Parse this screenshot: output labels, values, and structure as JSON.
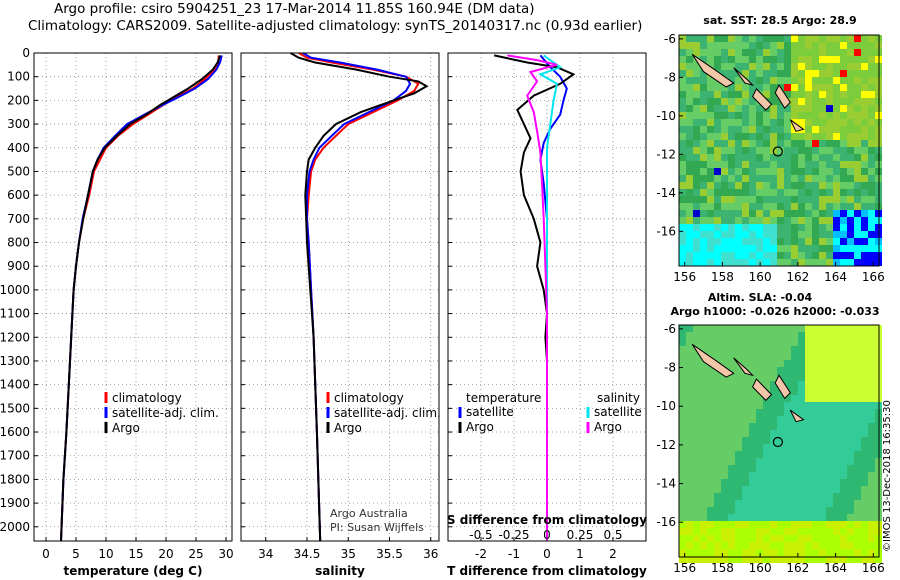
{
  "header": {
    "title_line1": "Argo profile: csiro 5904251_23 17-Mar-2014 11.85S 160.94E (DM data)",
    "title_line2": "Climatology: CARS2009. Satellite-adjusted climatology: synTS_20140317.nc (0.93d earlier)"
  },
  "watermark": "©IMOS 13-Dec-2018 16:35:30",
  "colors": {
    "climatology": "#ff0000",
    "satellite": "#0000ff",
    "argo": "#000000",
    "sat_salinity": "#00e5ee",
    "argo_salinity": "#ff00ff"
  },
  "depth_axis": {
    "ticks": [
      0,
      100,
      200,
      300,
      400,
      500,
      600,
      700,
      800,
      900,
      1000,
      1100,
      1200,
      1300,
      1400,
      1500,
      1600,
      1700,
      1800,
      1900,
      2000
    ]
  },
  "chart_data": [
    {
      "type": "line",
      "name": "temperature",
      "xlabel": "temperature (deg C)",
      "xlim": [
        -2,
        31
      ],
      "xticks": [
        0,
        5,
        10,
        15,
        20,
        25,
        30
      ],
      "ylim": [
        0,
        2060
      ],
      "legend": {
        "items": [
          "climatology",
          "satellite-adj. clim.",
          "Argo"
        ]
      },
      "series": [
        {
          "name": "climatology",
          "color": "#ff0000",
          "points": [
            [
              28.8,
              10
            ],
            [
              28.7,
              40
            ],
            [
              28.0,
              70
            ],
            [
              26.5,
              110
            ],
            [
              24.5,
              150
            ],
            [
              21.5,
              190
            ],
            [
              19.5,
              220
            ],
            [
              17.0,
              260
            ],
            [
              14.5,
              300
            ],
            [
              12.0,
              350
            ],
            [
              10.0,
              400
            ],
            [
              9.0,
              450
            ],
            [
              8.0,
              500
            ],
            [
              7.2,
              600
            ],
            [
              6.2,
              700
            ],
            [
              5.5,
              800
            ],
            [
              5.0,
              900
            ],
            [
              4.6,
              1000
            ],
            [
              4.2,
              1200
            ],
            [
              3.8,
              1400
            ],
            [
              3.4,
              1600
            ],
            [
              2.9,
              1800
            ],
            [
              2.5,
              2060
            ]
          ]
        },
        {
          "name": "satellite-adj. clim.",
          "color": "#0000ff",
          "points": [
            [
              29.3,
              10
            ],
            [
              29.0,
              40
            ],
            [
              28.4,
              70
            ],
            [
              27.0,
              110
            ],
            [
              24.8,
              150
            ],
            [
              21.8,
              190
            ],
            [
              19.4,
              220
            ],
            [
              16.4,
              260
            ],
            [
              13.5,
              300
            ],
            [
              11.5,
              350
            ],
            [
              9.6,
              400
            ],
            [
              8.6,
              450
            ],
            [
              7.8,
              500
            ],
            [
              7.0,
              600
            ],
            [
              6.1,
              700
            ],
            [
              5.5,
              800
            ],
            [
              5.0,
              900
            ],
            [
              4.6,
              1000
            ],
            [
              4.2,
              1200
            ],
            [
              3.8,
              1400
            ],
            [
              3.4,
              1600
            ],
            [
              2.9,
              1800
            ],
            [
              2.5,
              2060
            ]
          ]
        },
        {
          "name": "Argo",
          "color": "#000000",
          "points": [
            [
              29.0,
              10
            ],
            [
              28.6,
              40
            ],
            [
              27.8,
              70
            ],
            [
              26.0,
              110
            ],
            [
              23.7,
              150
            ],
            [
              21.0,
              190
            ],
            [
              19.0,
              220
            ],
            [
              16.7,
              260
            ],
            [
              14.0,
              300
            ],
            [
              11.8,
              350
            ],
            [
              9.8,
              400
            ],
            [
              8.6,
              450
            ],
            [
              7.8,
              500
            ],
            [
              7.0,
              600
            ],
            [
              6.2,
              700
            ],
            [
              5.5,
              800
            ],
            [
              5.0,
              900
            ],
            [
              4.6,
              1000
            ],
            [
              4.2,
              1200
            ],
            [
              3.8,
              1400
            ],
            [
              3.4,
              1600
            ],
            [
              2.9,
              1800
            ],
            [
              2.5,
              2060
            ]
          ]
        }
      ]
    },
    {
      "type": "line",
      "name": "salinity",
      "xlabel": "salinity",
      "xlim": [
        33.7,
        36.1
      ],
      "xticks": [
        34,
        34.5,
        35,
        35.5,
        36
      ],
      "ylim": [
        0,
        2060
      ],
      "legend": {
        "items": [
          "climatology",
          "satellite-adj. clim.",
          "Argo"
        ]
      },
      "annotation": [
        "Argo Australia",
        "PI: Susan Wijffels"
      ],
      "series": [
        {
          "name": "climatology",
          "color": "#ff0000",
          "points": [
            [
              34.4,
              0
            ],
            [
              34.5,
              20
            ],
            [
              34.8,
              40
            ],
            [
              35.3,
              70
            ],
            [
              35.7,
              100
            ],
            [
              35.85,
              130
            ],
            [
              35.8,
              160
            ],
            [
              35.6,
              200
            ],
            [
              35.3,
              250
            ],
            [
              35.0,
              300
            ],
            [
              34.85,
              350
            ],
            [
              34.7,
              400
            ],
            [
              34.6,
              450
            ],
            [
              34.55,
              500
            ],
            [
              34.52,
              600
            ],
            [
              34.5,
              700
            ],
            [
              34.52,
              800
            ],
            [
              34.55,
              1000
            ],
            [
              34.58,
              1200
            ],
            [
              34.62,
              1600
            ],
            [
              34.66,
              2060
            ]
          ]
        },
        {
          "name": "satellite-adj. clim.",
          "color": "#0000ff",
          "points": [
            [
              34.45,
              0
            ],
            [
              34.55,
              20
            ],
            [
              34.9,
              40
            ],
            [
              35.35,
              70
            ],
            [
              35.7,
              100
            ],
            [
              35.75,
              130
            ],
            [
              35.7,
              160
            ],
            [
              35.55,
              200
            ],
            [
              35.25,
              250
            ],
            [
              34.95,
              300
            ],
            [
              34.8,
              350
            ],
            [
              34.65,
              400
            ],
            [
              34.58,
              450
            ],
            [
              34.53,
              500
            ],
            [
              34.5,
              600
            ],
            [
              34.5,
              700
            ],
            [
              34.52,
              800
            ],
            [
              34.55,
              1000
            ],
            [
              34.58,
              1200
            ],
            [
              34.62,
              1600
            ],
            [
              34.66,
              2060
            ]
          ]
        },
        {
          "name": "Argo",
          "color": "#000000",
          "points": [
            [
              34.3,
              0
            ],
            [
              34.4,
              20
            ],
            [
              34.6,
              40
            ],
            [
              35.1,
              70
            ],
            [
              35.5,
              100
            ],
            [
              35.85,
              120
            ],
            [
              35.95,
              140
            ],
            [
              35.8,
              170
            ],
            [
              35.55,
              200
            ],
            [
              35.15,
              250
            ],
            [
              34.85,
              300
            ],
            [
              34.7,
              350
            ],
            [
              34.6,
              400
            ],
            [
              34.52,
              450
            ],
            [
              34.5,
              500
            ],
            [
              34.48,
              600
            ],
            [
              34.49,
              700
            ],
            [
              34.5,
              800
            ],
            [
              34.54,
              1000
            ],
            [
              34.58,
              1200
            ],
            [
              34.62,
              1600
            ],
            [
              34.66,
              2060
            ]
          ]
        }
      ]
    },
    {
      "type": "line",
      "name": "difference",
      "xlabel": "T difference from climatology",
      "xlim": [
        -3,
        3
      ],
      "xticks": [
        -2,
        -1,
        0,
        1,
        2
      ],
      "ylim": [
        0,
        2060
      ],
      "secondary_axis": {
        "label": "S difference from climatology",
        "ticks": [
          "-0.5",
          "-0.25",
          "0",
          "0.25",
          "0.5"
        ],
        "positions_T": [
          -2,
          -1,
          0,
          1,
          2
        ]
      },
      "legend": {
        "left_title": "temperature",
        "right_title": "salinity",
        "items": [
          "satellite",
          "Argo",
          "satellite",
          "Argo"
        ]
      },
      "series": [
        {
          "name": "temperature satellite",
          "color": "#0000ff",
          "points": [
            [
              -0.2,
              10
            ],
            [
              0.1,
              60
            ],
            [
              0.4,
              100
            ],
            [
              0.6,
              150
            ],
            [
              0.5,
              200
            ],
            [
              0.4,
              260
            ],
            [
              0.1,
              320
            ],
            [
              -0.1,
              380
            ],
            [
              -0.2,
              450
            ],
            [
              -0.1,
              550
            ],
            [
              0,
              700
            ],
            [
              0,
              1000
            ],
            [
              0,
              1500
            ],
            [
              0,
              2060
            ]
          ]
        },
        {
          "name": "temperature Argo",
          "color": "#000000",
          "points": [
            [
              -1.6,
              10
            ],
            [
              -0.6,
              40
            ],
            [
              0.3,
              60
            ],
            [
              0.8,
              90
            ],
            [
              0.4,
              130
            ],
            [
              -0.4,
              180
            ],
            [
              -0.9,
              240
            ],
            [
              -0.7,
              300
            ],
            [
              -0.5,
              360
            ],
            [
              -0.7,
              420
            ],
            [
              -0.8,
              500
            ],
            [
              -0.7,
              600
            ],
            [
              -0.4,
              700
            ],
            [
              -0.2,
              800
            ],
            [
              -0.3,
              900
            ],
            [
              -0.1,
              1000
            ],
            [
              0.0,
              1100
            ],
            [
              -0.05,
              1200
            ],
            [
              0.0,
              1300
            ],
            [
              0.0,
              1400
            ],
            [
              0.0,
              1600
            ],
            [
              0.0,
              2060
            ]
          ]
        },
        {
          "name": "salinity satellite",
          "color": "#00e5ee",
          "points": [
            [
              -0.1,
              10
            ],
            [
              0.2,
              40
            ],
            [
              0.4,
              60
            ],
            [
              -0.2,
              90
            ],
            [
              0.3,
              130
            ],
            [
              0.2,
              200
            ],
            [
              0.1,
              300
            ],
            [
              0.0,
              400
            ],
            [
              0.0,
              600
            ],
            [
              0.0,
              1000
            ],
            [
              0.0,
              1500
            ],
            [
              0.0,
              2060
            ]
          ]
        },
        {
          "name": "salinity Argo",
          "color": "#ff00ff",
          "points": [
            [
              -1.2,
              10
            ],
            [
              -0.3,
              30
            ],
            [
              0.3,
              50
            ],
            [
              -0.5,
              80
            ],
            [
              -0.3,
              120
            ],
            [
              -0.6,
              180
            ],
            [
              -0.4,
              250
            ],
            [
              -0.3,
              330
            ],
            [
              -0.2,
              420
            ],
            [
              -0.15,
              550
            ],
            [
              -0.1,
              700
            ],
            [
              -0.05,
              900
            ],
            [
              0.0,
              1100
            ],
            [
              0.0,
              1500
            ],
            [
              0.0,
              2060
            ]
          ]
        }
      ]
    },
    {
      "type": "heatmap",
      "name": "sst-map",
      "title": "sat. SST: 28.5 Argo: 28.9",
      "xticks": [
        156,
        158,
        160,
        162,
        164,
        166
      ],
      "yticks": [
        -6,
        -8,
        -10,
        -12,
        -14,
        -16
      ],
      "xlim": [
        155.7,
        166.3
      ],
      "ylim": [
        -17.8,
        -5.8
      ],
      "marker": {
        "lon": 160.94,
        "lat": -11.85
      }
    },
    {
      "type": "heatmap",
      "name": "sla-map",
      "title_line1": "Altim. SLA: -0.04",
      "title_line2": "Argo h1000: -0.026 h2000: -0.033",
      "xticks": [
        156,
        158,
        160,
        162,
        164,
        166
      ],
      "yticks": [
        -6,
        -8,
        -10,
        -12,
        -14,
        -16
      ],
      "xlim": [
        155.7,
        166.3
      ],
      "ylim": [
        -17.8,
        -5.8
      ],
      "marker": {
        "lon": 160.94,
        "lat": -11.85
      }
    }
  ]
}
